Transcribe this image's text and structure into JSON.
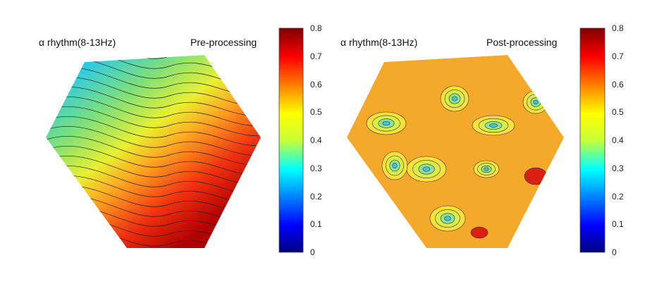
{
  "chart_data": [
    {
      "type": "heatmap",
      "title_left": "α rhythm(8-13Hz)",
      "title_right": "Pre-processing",
      "description_values": {
        "min_region": "top-left",
        "max_region": "bottom-right"
      },
      "approx_range": [
        0.35,
        0.75
      ],
      "colorbar": {
        "colormap": "jet",
        "range": [
          0,
          0.8
        ],
        "ticks": [
          "0",
          "0.1",
          "0.2",
          "0.3",
          "0.4",
          "0.5",
          "0.6",
          "0.7",
          "0.8"
        ]
      }
    },
    {
      "type": "heatmap",
      "title_left": "α rhythm(8-13Hz)",
      "title_right": "Post-processing",
      "approx_range": [
        0.3,
        0.8
      ],
      "colorbar": {
        "colormap": "jet",
        "range": [
          0,
          0.8
        ],
        "ticks": [
          "0",
          "0.1",
          "0.2",
          "0.3",
          "0.4",
          "0.5",
          "0.6",
          "0.7",
          "0.8"
        ]
      }
    }
  ]
}
